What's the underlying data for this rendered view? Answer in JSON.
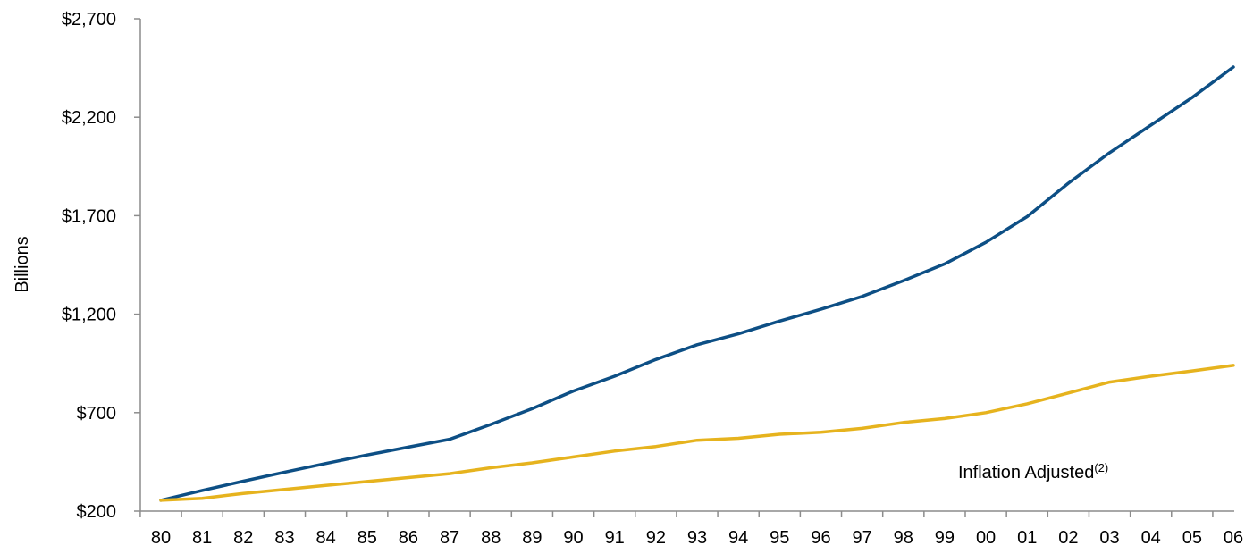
{
  "chart_data": {
    "type": "line",
    "ylabel": "Billions",
    "ylim": [
      200,
      2700
    ],
    "yticks": [
      200,
      700,
      1200,
      1700,
      2200,
      2700
    ],
    "ytick_labels": [
      "$200",
      "$700",
      "$1,200",
      "$1,700",
      "$2,200",
      "$2,700"
    ],
    "categories": [
      "80",
      "81",
      "82",
      "83",
      "84",
      "85",
      "86",
      "87",
      "88",
      "89",
      "90",
      "91",
      "92",
      "93",
      "94",
      "95",
      "96",
      "97",
      "98",
      "99",
      "00",
      "01",
      "02",
      "03",
      "04",
      "05",
      "06"
    ],
    "grid": false,
    "series": [
      {
        "name": "",
        "color": "#0d4f85",
        "values": [
          255,
          305,
          352,
          398,
          442,
          485,
          525,
          565,
          640,
          720,
          810,
          885,
          970,
          1045,
          1100,
          1165,
          1225,
          1290,
          1370,
          1455,
          1565,
          1695,
          1865,
          2020,
          2160,
          2300,
          2455
        ]
      },
      {
        "name": "Inflation Adjusted",
        "color": "#e6b31e",
        "values": [
          255,
          265,
          290,
          310,
          330,
          350,
          370,
          390,
          420,
          445,
          475,
          505,
          528,
          560,
          570,
          590,
          600,
          620,
          650,
          670,
          700,
          745,
          800,
          855,
          885,
          912,
          940
        ]
      }
    ],
    "annotation": {
      "text": "Inflation Adjusted",
      "superscript": "(2)"
    }
  }
}
